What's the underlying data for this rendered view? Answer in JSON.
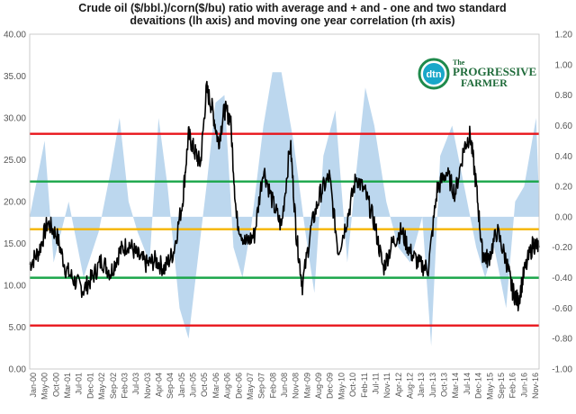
{
  "chart_data": {
    "type": "line",
    "title_lines": [
      "Crude oil ($/bbl.)/corn($/bu) ratio with average and + and - one and two standard",
      "devaitions (lh axis) and moving one year correlation (rh axis)"
    ],
    "left_axis": {
      "range": [
        0,
        40
      ],
      "tick_labels": [
        "0.00",
        "5.00",
        "10.00",
        "15.00",
        "20.00",
        "25.00",
        "30.00",
        "35.00",
        "40.00"
      ]
    },
    "right_axis": {
      "range": [
        -1.0,
        1.2
      ],
      "tick_labels": [
        "-1.00",
        "-0.80",
        "-0.60",
        "-0.40",
        "-0.20",
        "0.00",
        "0.20",
        "0.40",
        "0.60",
        "0.80",
        "1.00",
        "1.20"
      ]
    },
    "x_tick_labels": [
      "Jan-00",
      "May-00",
      "Oct-00",
      "Mar-01",
      "Jul-01",
      "Dec-01",
      "May-02",
      "Sep-02",
      "Feb-03",
      "Jul-03",
      "Nov-03",
      "Apr-04",
      "Sep-04",
      "Jan-05",
      "Jun-05",
      "Oct-05",
      "Mar-06",
      "Aug-06",
      "Dec-06",
      "May-07",
      "Sep-07",
      "Feb-08",
      "Jun-08",
      "Nov-08",
      "Mar-09",
      "Aug-09",
      "Dec-09",
      "May-10",
      "Oct-10",
      "Feb-11",
      "Jul-11",
      "Nov-11",
      "Apr-12",
      "Aug-12",
      "Jan-13",
      "Jun-13",
      "Oct-13",
      "Mar-14",
      "Jul-14",
      "Dec-14",
      "May-15",
      "Sep-15",
      "Feb-16",
      "Jun-16",
      "Nov-16"
    ],
    "reference_lines": [
      {
        "value": 28.1,
        "color": "#e8151b"
      },
      {
        "value": 22.4,
        "color": "#1aa64a"
      },
      {
        "value": 16.7,
        "color": "#f5b400"
      },
      {
        "value": 10.9,
        "color": "#1aa64a"
      },
      {
        "value": 5.2,
        "color": "#e8151b"
      }
    ],
    "ratio_series": {
      "color": "#000000",
      "x_year": [
        2000.0,
        2000.3,
        2000.6,
        2000.9,
        2001.2,
        2001.5,
        2001.8,
        2002.1,
        2002.4,
        2002.7,
        2003.0,
        2003.3,
        2003.6,
        2003.9,
        2004.2,
        2004.5,
        2004.8,
        2005.1,
        2005.3,
        2005.5,
        2005.7,
        2005.9,
        2006.1,
        2006.3,
        2006.5,
        2006.7,
        2006.9,
        2007.2,
        2007.5,
        2007.8,
        2008.1,
        2008.4,
        2008.7,
        2008.9,
        2009.1,
        2009.4,
        2009.7,
        2010.0,
        2010.3,
        2010.6,
        2010.9,
        2011.2,
        2011.5,
        2011.8,
        2012.1,
        2012.4,
        2012.7,
        2013.0,
        2013.3,
        2013.6,
        2013.9,
        2014.2,
        2014.5,
        2014.7,
        2014.9,
        2015.1,
        2015.3,
        2015.6,
        2015.9,
        2016.1,
        2016.3,
        2016.5,
        2016.8,
        2017.0
      ],
      "y": [
        12.5,
        14.0,
        17.5,
        16.0,
        12.0,
        10.5,
        9.5,
        11.0,
        13.0,
        11.5,
        14.0,
        15.0,
        13.5,
        12.5,
        13.0,
        12.0,
        14.0,
        20.0,
        28.0,
        26.0,
        24.5,
        33.5,
        31.0,
        27.0,
        31.0,
        30.0,
        18.0,
        15.0,
        16.0,
        24.0,
        20.0,
        17.0,
        27.0,
        16.0,
        10.0,
        17.0,
        21.0,
        23.0,
        14.0,
        18.0,
        23.0,
        21.0,
        17.5,
        12.0,
        15.0,
        16.5,
        14.0,
        12.5,
        12.0,
        21.5,
        23.5,
        21.0,
        26.5,
        28.0,
        22.0,
        14.0,
        13.0,
        16.5,
        13.0,
        9.5,
        8.0,
        11.5,
        15.0,
        14.5
      ]
    },
    "correlation_series": {
      "color": "#bcd7ee",
      "x_year": [
        2000.0,
        2000.5,
        2000.8,
        2001.3,
        2001.8,
        2002.3,
        2002.7,
        2003.0,
        2003.3,
        2003.6,
        2004.0,
        2004.3,
        2004.6,
        2005.0,
        2005.3,
        2005.6,
        2005.9,
        2006.2,
        2006.5,
        2006.8,
        2007.1,
        2007.4,
        2007.8,
        2008.1,
        2008.4,
        2008.8,
        2009.2,
        2009.5,
        2009.8,
        2010.2,
        2010.6,
        2010.9,
        2011.2,
        2011.5,
        2011.9,
        2012.3,
        2012.7,
        2013.1,
        2013.4,
        2013.7,
        2014.1,
        2014.5,
        2014.9,
        2015.2,
        2015.5,
        2015.9,
        2016.2,
        2016.5,
        2016.9,
        2017.0
      ],
      "y": [
        0.0,
        0.5,
        -0.3,
        0.1,
        -0.4,
        -0.1,
        0.3,
        0.65,
        0.1,
        -0.1,
        -0.3,
        0.65,
        0.2,
        -0.6,
        -0.8,
        -0.3,
        0.2,
        0.75,
        0.8,
        -0.2,
        -0.4,
        -0.05,
        0.6,
        0.95,
        0.95,
        0.5,
        -0.1,
        -0.5,
        0.4,
        0.7,
        -0.3,
        0.3,
        0.85,
        0.6,
        0.1,
        -0.2,
        -0.3,
        0.0,
        -0.85,
        0.4,
        0.6,
        0.2,
        -0.2,
        -0.4,
        -0.2,
        -0.6,
        0.1,
        0.2,
        0.65,
        0.1
      ]
    },
    "legend": "none",
    "grid": false
  },
  "logo": {
    "badge": "dtn",
    "name_line1": "PROGRESSIVE",
    "name_line2": "FARMER",
    "article": "The"
  }
}
